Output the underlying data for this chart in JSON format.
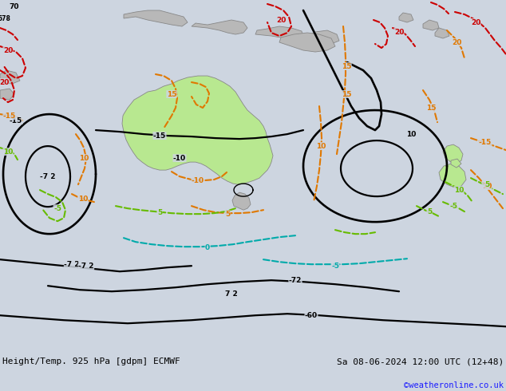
{
  "title_left": "Height/Temp. 925 hPa [gdpm] ECMWF",
  "title_right": "Sa 08-06-2024 12:00 UTC (12+48)",
  "credit": "©weatheronline.co.uk",
  "bg_ocean": "#cdd5e0",
  "land_gray": "#b8b8b8",
  "land_green": "#b8e890",
  "fig_width": 6.34,
  "fig_height": 4.9,
  "dpi": 100,
  "title_fontsize": 8.0,
  "credit_fontsize": 7.5,
  "credit_color": "#1a1aff",
  "black": "#000000",
  "orange": "#e07800",
  "red": "#cc0000",
  "green": "#66bb00",
  "cyan": "#00aaaa"
}
